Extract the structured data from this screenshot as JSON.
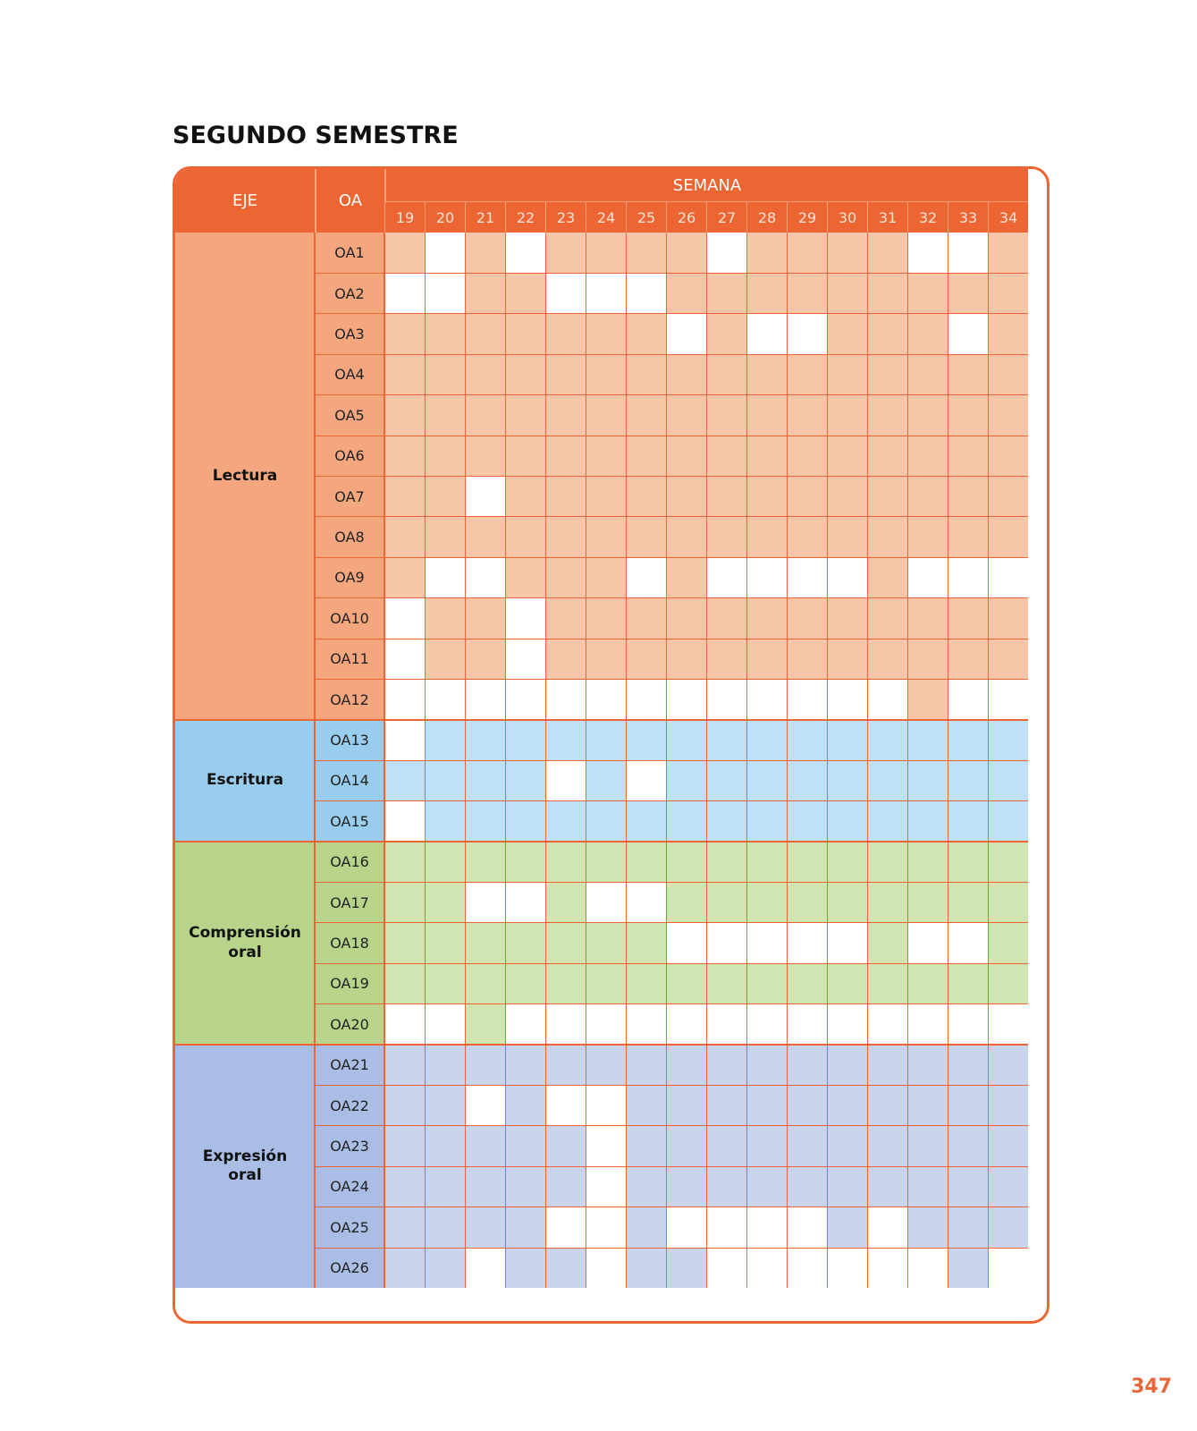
{
  "page_title": "SEGUNDO SEMESTRE",
  "page_number": "347",
  "table": {
    "header": {
      "eje": "EJE",
      "oa": "OA",
      "semana": "SEMANA"
    },
    "weeks": [
      "19",
      "20",
      "21",
      "22",
      "23",
      "24",
      "25",
      "26",
      "27",
      "28",
      "29",
      "30",
      "31",
      "32",
      "33",
      "34"
    ],
    "colors": {
      "header": "#ec6532",
      "grid": "#ec6532",
      "empty": "#ffffff"
    },
    "ejes": [
      {
        "name_lines": [
          "Lectura"
        ],
        "label_color": "#f4a77f",
        "fill_color": "#f7c5a8",
        "start_row": 0,
        "row_count": 12
      },
      {
        "name_lines": [
          "Escritura"
        ],
        "label_color": "#98cded",
        "fill_color": "#bfe1f6",
        "start_row": 12,
        "row_count": 3
      },
      {
        "name_lines": [
          "Comprensión",
          "oral"
        ],
        "label_color": "#b7d48a",
        "fill_color": "#d1e5b3",
        "start_row": 15,
        "row_count": 5
      },
      {
        "name_lines": [
          "Expresión",
          "oral"
        ],
        "label_color": "#a9bde5",
        "fill_color": "#c9d4ef",
        "start_row": 20,
        "row_count": 6
      }
    ],
    "rows": [
      {
        "oa": "OA1",
        "eje": 0,
        "filled": [
          1,
          0,
          1,
          0,
          1,
          1,
          1,
          1,
          0,
          1,
          1,
          1,
          1,
          0,
          0,
          1
        ]
      },
      {
        "oa": "OA2",
        "eje": 0,
        "filled": [
          0,
          0,
          1,
          1,
          0,
          0,
          0,
          1,
          1,
          1,
          1,
          1,
          1,
          1,
          1,
          1
        ]
      },
      {
        "oa": "OA3",
        "eje": 0,
        "filled": [
          1,
          1,
          1,
          1,
          1,
          1,
          1,
          0,
          1,
          0,
          0,
          1,
          1,
          1,
          0,
          1
        ]
      },
      {
        "oa": "OA4",
        "eje": 0,
        "filled": [
          1,
          1,
          1,
          1,
          1,
          1,
          1,
          1,
          1,
          1,
          1,
          1,
          1,
          1,
          1,
          1
        ]
      },
      {
        "oa": "OA5",
        "eje": 0,
        "filled": [
          1,
          1,
          1,
          1,
          1,
          1,
          1,
          1,
          1,
          1,
          1,
          1,
          1,
          1,
          1,
          1
        ]
      },
      {
        "oa": "OA6",
        "eje": 0,
        "filled": [
          1,
          1,
          1,
          1,
          1,
          1,
          1,
          1,
          1,
          1,
          1,
          1,
          1,
          1,
          1,
          1
        ]
      },
      {
        "oa": "OA7",
        "eje": 0,
        "filled": [
          1,
          1,
          0,
          1,
          1,
          1,
          1,
          1,
          1,
          1,
          1,
          1,
          1,
          1,
          1,
          1
        ]
      },
      {
        "oa": "OA8",
        "eje": 0,
        "filled": [
          1,
          1,
          1,
          1,
          1,
          1,
          1,
          1,
          1,
          1,
          1,
          1,
          1,
          1,
          1,
          1
        ]
      },
      {
        "oa": "OA9",
        "eje": 0,
        "filled": [
          1,
          0,
          0,
          1,
          1,
          1,
          0,
          1,
          0,
          0,
          0,
          0,
          1,
          0,
          0,
          0
        ]
      },
      {
        "oa": "OA10",
        "eje": 0,
        "filled": [
          0,
          1,
          1,
          0,
          1,
          1,
          1,
          1,
          1,
          1,
          1,
          1,
          1,
          1,
          1,
          1
        ]
      },
      {
        "oa": "OA11",
        "eje": 0,
        "filled": [
          0,
          1,
          1,
          0,
          1,
          1,
          1,
          1,
          1,
          1,
          1,
          1,
          1,
          1,
          1,
          1
        ]
      },
      {
        "oa": "OA12",
        "eje": 0,
        "filled": [
          0,
          0,
          0,
          0,
          0,
          0,
          0,
          0,
          0,
          0,
          0,
          0,
          0,
          1,
          0,
          0
        ]
      },
      {
        "oa": "OA13",
        "eje": 1,
        "filled": [
          0,
          1,
          1,
          1,
          1,
          1,
          1,
          1,
          1,
          1,
          1,
          1,
          1,
          1,
          1,
          1
        ]
      },
      {
        "oa": "OA14",
        "eje": 1,
        "filled": [
          1,
          1,
          1,
          1,
          0,
          1,
          0,
          1,
          1,
          1,
          1,
          1,
          1,
          1,
          1,
          1
        ]
      },
      {
        "oa": "OA15",
        "eje": 1,
        "filled": [
          0,
          1,
          1,
          1,
          1,
          1,
          1,
          1,
          1,
          1,
          1,
          1,
          1,
          1,
          1,
          1
        ]
      },
      {
        "oa": "OA16",
        "eje": 2,
        "filled": [
          1,
          1,
          1,
          1,
          1,
          1,
          1,
          1,
          1,
          1,
          1,
          1,
          1,
          1,
          1,
          1
        ]
      },
      {
        "oa": "OA17",
        "eje": 2,
        "filled": [
          1,
          1,
          0,
          0,
          1,
          0,
          0,
          1,
          1,
          1,
          1,
          1,
          1,
          1,
          1,
          1
        ]
      },
      {
        "oa": "OA18",
        "eje": 2,
        "filled": [
          1,
          1,
          1,
          1,
          1,
          1,
          1,
          0,
          0,
          0,
          0,
          0,
          1,
          0,
          0,
          1
        ]
      },
      {
        "oa": "OA19",
        "eje": 2,
        "filled": [
          1,
          1,
          1,
          1,
          1,
          1,
          1,
          1,
          1,
          1,
          1,
          1,
          1,
          1,
          1,
          1
        ]
      },
      {
        "oa": "OA20",
        "eje": 2,
        "filled": [
          0,
          0,
          1,
          0,
          0,
          0,
          0,
          0,
          0,
          0,
          0,
          0,
          0,
          0,
          0,
          0
        ]
      },
      {
        "oa": "OA21",
        "eje": 3,
        "filled": [
          1,
          1,
          1,
          1,
          1,
          1,
          1,
          1,
          1,
          1,
          1,
          1,
          1,
          1,
          1,
          1
        ]
      },
      {
        "oa": "OA22",
        "eje": 3,
        "filled": [
          1,
          1,
          0,
          1,
          0,
          0,
          1,
          1,
          1,
          1,
          1,
          1,
          1,
          1,
          1,
          1
        ]
      },
      {
        "oa": "OA23",
        "eje": 3,
        "filled": [
          1,
          1,
          1,
          1,
          1,
          0,
          1,
          1,
          1,
          1,
          1,
          1,
          1,
          1,
          1,
          1
        ]
      },
      {
        "oa": "OA24",
        "eje": 3,
        "filled": [
          1,
          1,
          1,
          1,
          1,
          0,
          1,
          1,
          1,
          1,
          1,
          1,
          1,
          1,
          1,
          1
        ]
      },
      {
        "oa": "OA25",
        "eje": 3,
        "filled": [
          1,
          1,
          1,
          1,
          0,
          0,
          1,
          0,
          0,
          0,
          0,
          1,
          0,
          1,
          1,
          1
        ]
      },
      {
        "oa": "OA26",
        "eje": 3,
        "filled": [
          1,
          1,
          0,
          1,
          1,
          0,
          1,
          1,
          0,
          0,
          0,
          0,
          0,
          0,
          1,
          0
        ]
      }
    ]
  }
}
